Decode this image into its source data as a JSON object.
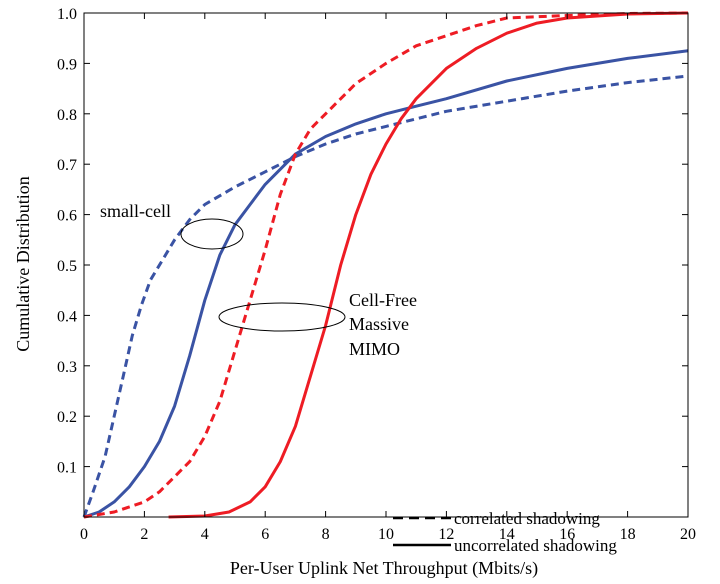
{
  "chart_data": {
    "type": "line",
    "title": "",
    "xlabel": "Per-User Uplink Net Throughput (Mbits/s)",
    "ylabel": "Cumulative Distribution",
    "xlim": [
      0,
      20
    ],
    "ylim": [
      0,
      1.0
    ],
    "xticks": [
      "0",
      "2",
      "4",
      "6",
      "8",
      "10",
      "12",
      "14",
      "16",
      "18",
      "20"
    ],
    "yticks": [
      "0.1",
      "0.2",
      "0.3",
      "0.4",
      "0.5",
      "0.6",
      "0.7",
      "0.8",
      "0.9",
      "1.0"
    ],
    "grid": false,
    "legend_position": "bottom-right",
    "legend": [
      {
        "label": "correlated shadowing",
        "style": "dashed"
      },
      {
        "label": "uncorrelated shadowing",
        "style": "solid"
      }
    ],
    "annotations": [
      {
        "text": "small-cell"
      },
      {
        "text": "Cell-Free"
      },
      {
        "text": "Massive"
      },
      {
        "text": "MIMO"
      }
    ],
    "colors": {
      "small_cell": "#3a53a4",
      "cell_free": "#ee1c24"
    },
    "series": [
      {
        "group": "small-cell",
        "style": "dashed",
        "color": "#3a53a4",
        "points": [
          [
            0,
            0
          ],
          [
            0.3,
            0.05
          ],
          [
            0.7,
            0.12
          ],
          [
            1.0,
            0.2
          ],
          [
            1.3,
            0.28
          ],
          [
            1.6,
            0.36
          ],
          [
            1.9,
            0.42
          ],
          [
            2.2,
            0.47
          ],
          [
            2.6,
            0.51
          ],
          [
            3.0,
            0.55
          ],
          [
            3.5,
            0.59
          ],
          [
            4.0,
            0.62
          ],
          [
            5.0,
            0.655
          ],
          [
            6.0,
            0.685
          ],
          [
            7.0,
            0.715
          ],
          [
            8.0,
            0.74
          ],
          [
            9.0,
            0.76
          ],
          [
            10,
            0.775
          ],
          [
            12,
            0.805
          ],
          [
            14,
            0.825
          ],
          [
            16,
            0.845
          ],
          [
            18,
            0.862
          ],
          [
            20,
            0.875
          ]
        ]
      },
      {
        "group": "small-cell",
        "style": "solid",
        "color": "#3a53a4",
        "points": [
          [
            0,
            0
          ],
          [
            0.5,
            0.01
          ],
          [
            1.0,
            0.03
          ],
          [
            1.5,
            0.06
          ],
          [
            2.0,
            0.1
          ],
          [
            2.5,
            0.15
          ],
          [
            3.0,
            0.22
          ],
          [
            3.5,
            0.32
          ],
          [
            4.0,
            0.43
          ],
          [
            4.5,
            0.52
          ],
          [
            5.0,
            0.58
          ],
          [
            5.5,
            0.62
          ],
          [
            6.0,
            0.66
          ],
          [
            7.0,
            0.72
          ],
          [
            8.0,
            0.755
          ],
          [
            9.0,
            0.78
          ],
          [
            10,
            0.8
          ],
          [
            11,
            0.815
          ],
          [
            12,
            0.83
          ],
          [
            14,
            0.865
          ],
          [
            16,
            0.89
          ],
          [
            18,
            0.91
          ],
          [
            20,
            0.925
          ]
        ]
      },
      {
        "group": "cell-free",
        "style": "dashed",
        "color": "#ee1c24",
        "points": [
          [
            0,
            0
          ],
          [
            1.0,
            0.01
          ],
          [
            2.0,
            0.03
          ],
          [
            2.5,
            0.05
          ],
          [
            3.0,
            0.08
          ],
          [
            3.5,
            0.11
          ],
          [
            4.0,
            0.16
          ],
          [
            4.5,
            0.23
          ],
          [
            5.0,
            0.33
          ],
          [
            5.5,
            0.43
          ],
          [
            6.0,
            0.53
          ],
          [
            6.5,
            0.64
          ],
          [
            7.0,
            0.72
          ],
          [
            7.5,
            0.77
          ],
          [
            8.0,
            0.8
          ],
          [
            9.0,
            0.86
          ],
          [
            10,
            0.9
          ],
          [
            11,
            0.935
          ],
          [
            12,
            0.955
          ],
          [
            13,
            0.975
          ],
          [
            14,
            0.99
          ],
          [
            16,
            0.995
          ],
          [
            18,
            0.999
          ],
          [
            20,
            1.0
          ]
        ]
      },
      {
        "group": "cell-free",
        "style": "solid",
        "color": "#ee1c24",
        "points": [
          [
            2.8,
            0
          ],
          [
            4.0,
            0.002
          ],
          [
            4.8,
            0.01
          ],
          [
            5.5,
            0.03
          ],
          [
            6.0,
            0.06
          ],
          [
            6.5,
            0.11
          ],
          [
            7.0,
            0.18
          ],
          [
            7.5,
            0.28
          ],
          [
            8.0,
            0.38
          ],
          [
            8.5,
            0.5
          ],
          [
            9.0,
            0.6
          ],
          [
            9.5,
            0.68
          ],
          [
            10,
            0.74
          ],
          [
            10.5,
            0.79
          ],
          [
            11,
            0.83
          ],
          [
            11.5,
            0.86
          ],
          [
            12,
            0.89
          ],
          [
            13,
            0.93
          ],
          [
            14,
            0.96
          ],
          [
            15,
            0.98
          ],
          [
            16,
            0.99
          ],
          [
            18,
            0.998
          ],
          [
            20,
            1.0
          ]
        ]
      }
    ]
  }
}
